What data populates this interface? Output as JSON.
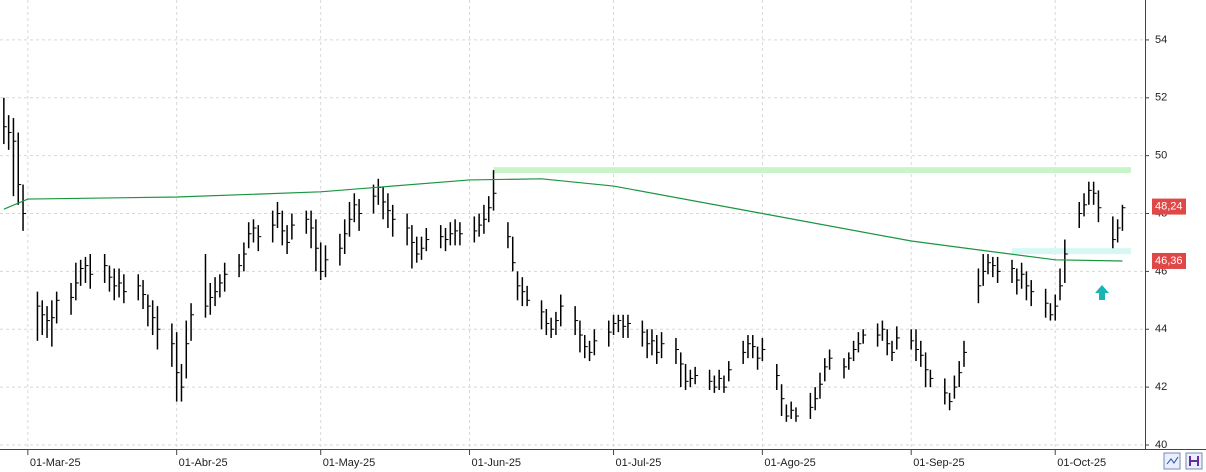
{
  "chart_data": {
    "type": "ohlc",
    "xlim": [
      -5.8,
      232.7
    ],
    "ylim": [
      39.93,
      55.38
    ],
    "yticks": [
      40,
      42,
      44,
      46,
      48,
      50,
      52,
      54
    ],
    "xticks": [
      {
        "value": 0,
        "label": "01-Mar-25"
      },
      {
        "value": 31,
        "label": "01-Abr-25"
      },
      {
        "value": 61,
        "label": "01-May-25"
      },
      {
        "value": 92,
        "label": "01-Jun-25"
      },
      {
        "value": 122,
        "label": "01-Jul-25"
      },
      {
        "value": 153,
        "label": "01-Ago-25"
      },
      {
        "value": 184,
        "label": "01-Sep-25"
      },
      {
        "value": 214,
        "label": "01-Oct-25"
      }
    ],
    "grid": true,
    "bar_color": "#000000",
    "x": [
      -5,
      -4,
      -3,
      -2,
      -1,
      2,
      3,
      4,
      5,
      6,
      9,
      10,
      11,
      12,
      13,
      16,
      17,
      18,
      19,
      20,
      23,
      24,
      25,
      26,
      27,
      30,
      31,
      32,
      33,
      34,
      37,
      38,
      39,
      40,
      41,
      44,
      45,
      46,
      47,
      48,
      51,
      52,
      53,
      54,
      55,
      58,
      59,
      60,
      61,
      62,
      65,
      66,
      67,
      68,
      69,
      72,
      73,
      74,
      75,
      76,
      79,
      80,
      81,
      82,
      83,
      86,
      87,
      88,
      89,
      90,
      93,
      94,
      95,
      96,
      97,
      100,
      101,
      102,
      103,
      104,
      107,
      108,
      109,
      110,
      111,
      114,
      115,
      116,
      117,
      118,
      121,
      122,
      123,
      124,
      125,
      128,
      129,
      130,
      131,
      132,
      135,
      136,
      137,
      138,
      139,
      142,
      143,
      144,
      145,
      146,
      149,
      150,
      151,
      152,
      153,
      156,
      157,
      158,
      159,
      160,
      163,
      164,
      165,
      166,
      167,
      170,
      171,
      172,
      173,
      174,
      177,
      178,
      179,
      180,
      181,
      184,
      185,
      186,
      187,
      188,
      191,
      192,
      193,
      194,
      195,
      198,
      199,
      200,
      201,
      202,
      205,
      206,
      207,
      208,
      209,
      212,
      213,
      214,
      215,
      216,
      219,
      220,
      221,
      222,
      223,
      226,
      227,
      228
    ],
    "high": [
      52.0,
      51.4,
      51.3,
      50.8,
      49.0,
      45.3,
      45.0,
      44.8,
      45.0,
      45.3,
      45.6,
      46.3,
      46.4,
      46.5,
      46.6,
      46.6,
      46.2,
      46.1,
      46.1,
      45.9,
      45.9,
      45.7,
      45.2,
      45.0,
      44.8,
      44.2,
      43.9,
      42.8,
      44.3,
      44.9,
      46.6,
      45.6,
      45.8,
      45.9,
      46.3,
      46.6,
      47.0,
      47.7,
      47.8,
      47.6,
      48.1,
      48.4,
      48.1,
      47.6,
      48.0,
      48.1,
      48.1,
      47.8,
      47.0,
      46.9,
      47.3,
      47.8,
      48.4,
      48.7,
      48.5,
      49.0,
      49.2,
      48.9,
      48.7,
      48.3,
      48.0,
      47.6,
      47.2,
      47.2,
      47.5,
      47.6,
      47.5,
      47.7,
      47.8,
      47.7,
      47.9,
      48.0,
      48.3,
      48.6,
      49.5,
      47.7,
      47.2,
      46.0,
      45.8,
      45.5,
      45.0,
      44.7,
      44.4,
      44.6,
      45.2,
      44.8,
      44.3,
      43.8,
      43.6,
      44.0,
      44.3,
      44.5,
      44.5,
      44.5,
      44.5,
      44.3,
      44.0,
      44.0,
      43.8,
      43.9,
      43.7,
      43.2,
      42.8,
      42.6,
      42.7,
      42.6,
      42.4,
      42.6,
      42.4,
      42.9,
      43.6,
      43.8,
      43.8,
      43.4,
      43.7,
      42.8,
      42.1,
      41.4,
      41.5,
      41.3,
      41.8,
      42.0,
      42.5,
      43.0,
      43.3,
      43.0,
      43.2,
      43.6,
      43.9,
      44.0,
      44.2,
      44.3,
      44.0,
      43.6,
      44.1,
      44.0,
      44.0,
      43.6,
      43.2,
      42.6,
      42.3,
      41.8,
      42.4,
      42.9,
      43.6,
      46.1,
      46.6,
      46.6,
      46.5,
      46.5,
      46.4,
      46.1,
      46.3,
      46.0,
      45.7,
      45.4,
      44.9,
      45.2,
      46.1,
      47.1,
      48.4,
      48.7,
      49.1,
      49.1,
      48.8,
      47.9,
      47.8,
      48.3
    ],
    "low": [
      50.4,
      50.2,
      48.6,
      48.3,
      47.4,
      43.6,
      43.8,
      43.7,
      43.4,
      44.2,
      44.5,
      45.0,
      45.5,
      45.6,
      45.4,
      45.6,
      45.3,
      45.0,
      45.1,
      44.9,
      45.0,
      44.7,
      44.1,
      43.8,
      43.3,
      42.7,
      41.5,
      41.5,
      42.3,
      43.6,
      44.4,
      44.5,
      44.8,
      45.1,
      45.3,
      45.8,
      46.0,
      46.8,
      47.0,
      46.7,
      47.0,
      47.5,
      46.9,
      46.6,
      47.1,
      47.3,
      46.8,
      46.0,
      45.7,
      45.8,
      46.2,
      46.6,
      47.2,
      47.7,
      47.4,
      48.0,
      48.3,
      47.8,
      47.5,
      47.2,
      46.9,
      46.1,
      46.3,
      46.4,
      46.7,
      46.8,
      46.7,
      46.9,
      46.9,
      46.9,
      47.0,
      47.2,
      47.3,
      47.7,
      48.1,
      46.8,
      46.0,
      45.0,
      44.8,
      44.8,
      44.0,
      43.8,
      43.7,
      43.8,
      44.1,
      43.8,
      43.2,
      43.0,
      42.9,
      43.1,
      43.4,
      43.8,
      43.9,
      43.7,
      43.7,
      43.4,
      43.0,
      43.1,
      42.8,
      43.0,
      42.8,
      42.0,
      41.9,
      42.0,
      42.1,
      41.9,
      41.8,
      41.9,
      41.8,
      42.2,
      42.8,
      43.0,
      43.0,
      42.6,
      42.9,
      41.9,
      41.0,
      40.8,
      40.9,
      40.8,
      40.9,
      41.2,
      41.6,
      42.2,
      42.6,
      42.3,
      42.6,
      42.9,
      43.2,
      43.5,
      43.4,
      43.6,
      43.1,
      42.9,
      43.3,
      43.3,
      42.9,
      42.7,
      42.0,
      42.0,
      41.4,
      41.2,
      41.6,
      42.0,
      42.7,
      44.9,
      45.5,
      45.9,
      45.8,
      45.6,
      45.6,
      45.2,
      45.4,
      45.0,
      44.8,
      44.4,
      44.3,
      44.3,
      45.0,
      45.6,
      47.5,
      47.9,
      48.3,
      48.3,
      47.7,
      46.8,
      47.0,
      47.4
    ],
    "close": [
      51.0,
      50.8,
      50.5,
      49.0,
      48.0,
      44.8,
      44.5,
      44.3,
      44.4,
      45.0,
      45.1,
      45.6,
      46.1,
      46.2,
      45.9,
      46.2,
      45.8,
      45.5,
      45.6,
      45.3,
      45.5,
      45.2,
      44.8,
      44.4,
      44.0,
      43.5,
      42.5,
      42.0,
      43.5,
      44.5,
      44.8,
      45.1,
      45.3,
      45.6,
      45.9,
      46.2,
      46.6,
      47.3,
      47.5,
      47.2,
      47.6,
      48.0,
      47.4,
      47.0,
      47.6,
      47.8,
      47.5,
      46.8,
      46.0,
      46.4,
      46.8,
      47.3,
      47.8,
      48.3,
      48.0,
      48.6,
      48.9,
      48.4,
      48.1,
      47.8,
      47.5,
      47.0,
      46.6,
      46.8,
      47.1,
      47.2,
      47.1,
      47.3,
      47.4,
      47.3,
      47.4,
      47.6,
      47.8,
      48.2,
      48.7,
      47.2,
      46.3,
      45.5,
      45.3,
      45.0,
      44.6,
      44.2,
      44.0,
      44.3,
      44.8,
      44.3,
      43.8,
      43.4,
      43.2,
      43.6,
      43.9,
      44.2,
      44.3,
      44.1,
      44.2,
      43.9,
      43.5,
      43.6,
      43.2,
      43.5,
      43.3,
      42.8,
      42.2,
      42.3,
      42.4,
      42.2,
      42.0,
      42.3,
      42.0,
      42.6,
      43.2,
      43.5,
      43.4,
      43.0,
      43.3,
      42.4,
      41.6,
      41.0,
      41.2,
      41.0,
      41.3,
      41.6,
      42.1,
      42.7,
      43.0,
      42.7,
      43.0,
      43.3,
      43.5,
      43.8,
      43.8,
      44.0,
      43.5,
      43.2,
      43.7,
      43.6,
      43.3,
      43.1,
      42.6,
      42.3,
      41.8,
      41.5,
      42.0,
      42.5,
      43.2,
      45.5,
      46.0,
      46.3,
      46.2,
      46.0,
      46.1,
      45.7,
      45.9,
      45.5,
      45.3,
      44.9,
      44.5,
      44.8,
      45.5,
      46.6,
      48.0,
      48.3,
      48.8,
      48.7,
      48.2,
      47.1,
      47.5,
      48.2
    ],
    "ma": {
      "color": "#1a9641",
      "x": [
        -5,
        0,
        31,
        61,
        92,
        107,
        122,
        153,
        184,
        200,
        214,
        228
      ],
      "values": [
        48.15,
        48.5,
        48.57,
        48.75,
        49.16,
        49.2,
        48.95,
        48.0,
        47.05,
        46.7,
        46.4,
        46.36
      ]
    },
    "bands": [
      {
        "value": 49.5,
        "from": 97,
        "color": "#c8f5c8"
      },
      {
        "value": 46.7,
        "from": 205,
        "color": "#d6f8f4"
      }
    ],
    "price_labels": [
      {
        "value": 48.24,
        "label": "48,24"
      },
      {
        "value": 46.36,
        "label": "46,36"
      }
    ],
    "label_color": "#e04848"
  }
}
